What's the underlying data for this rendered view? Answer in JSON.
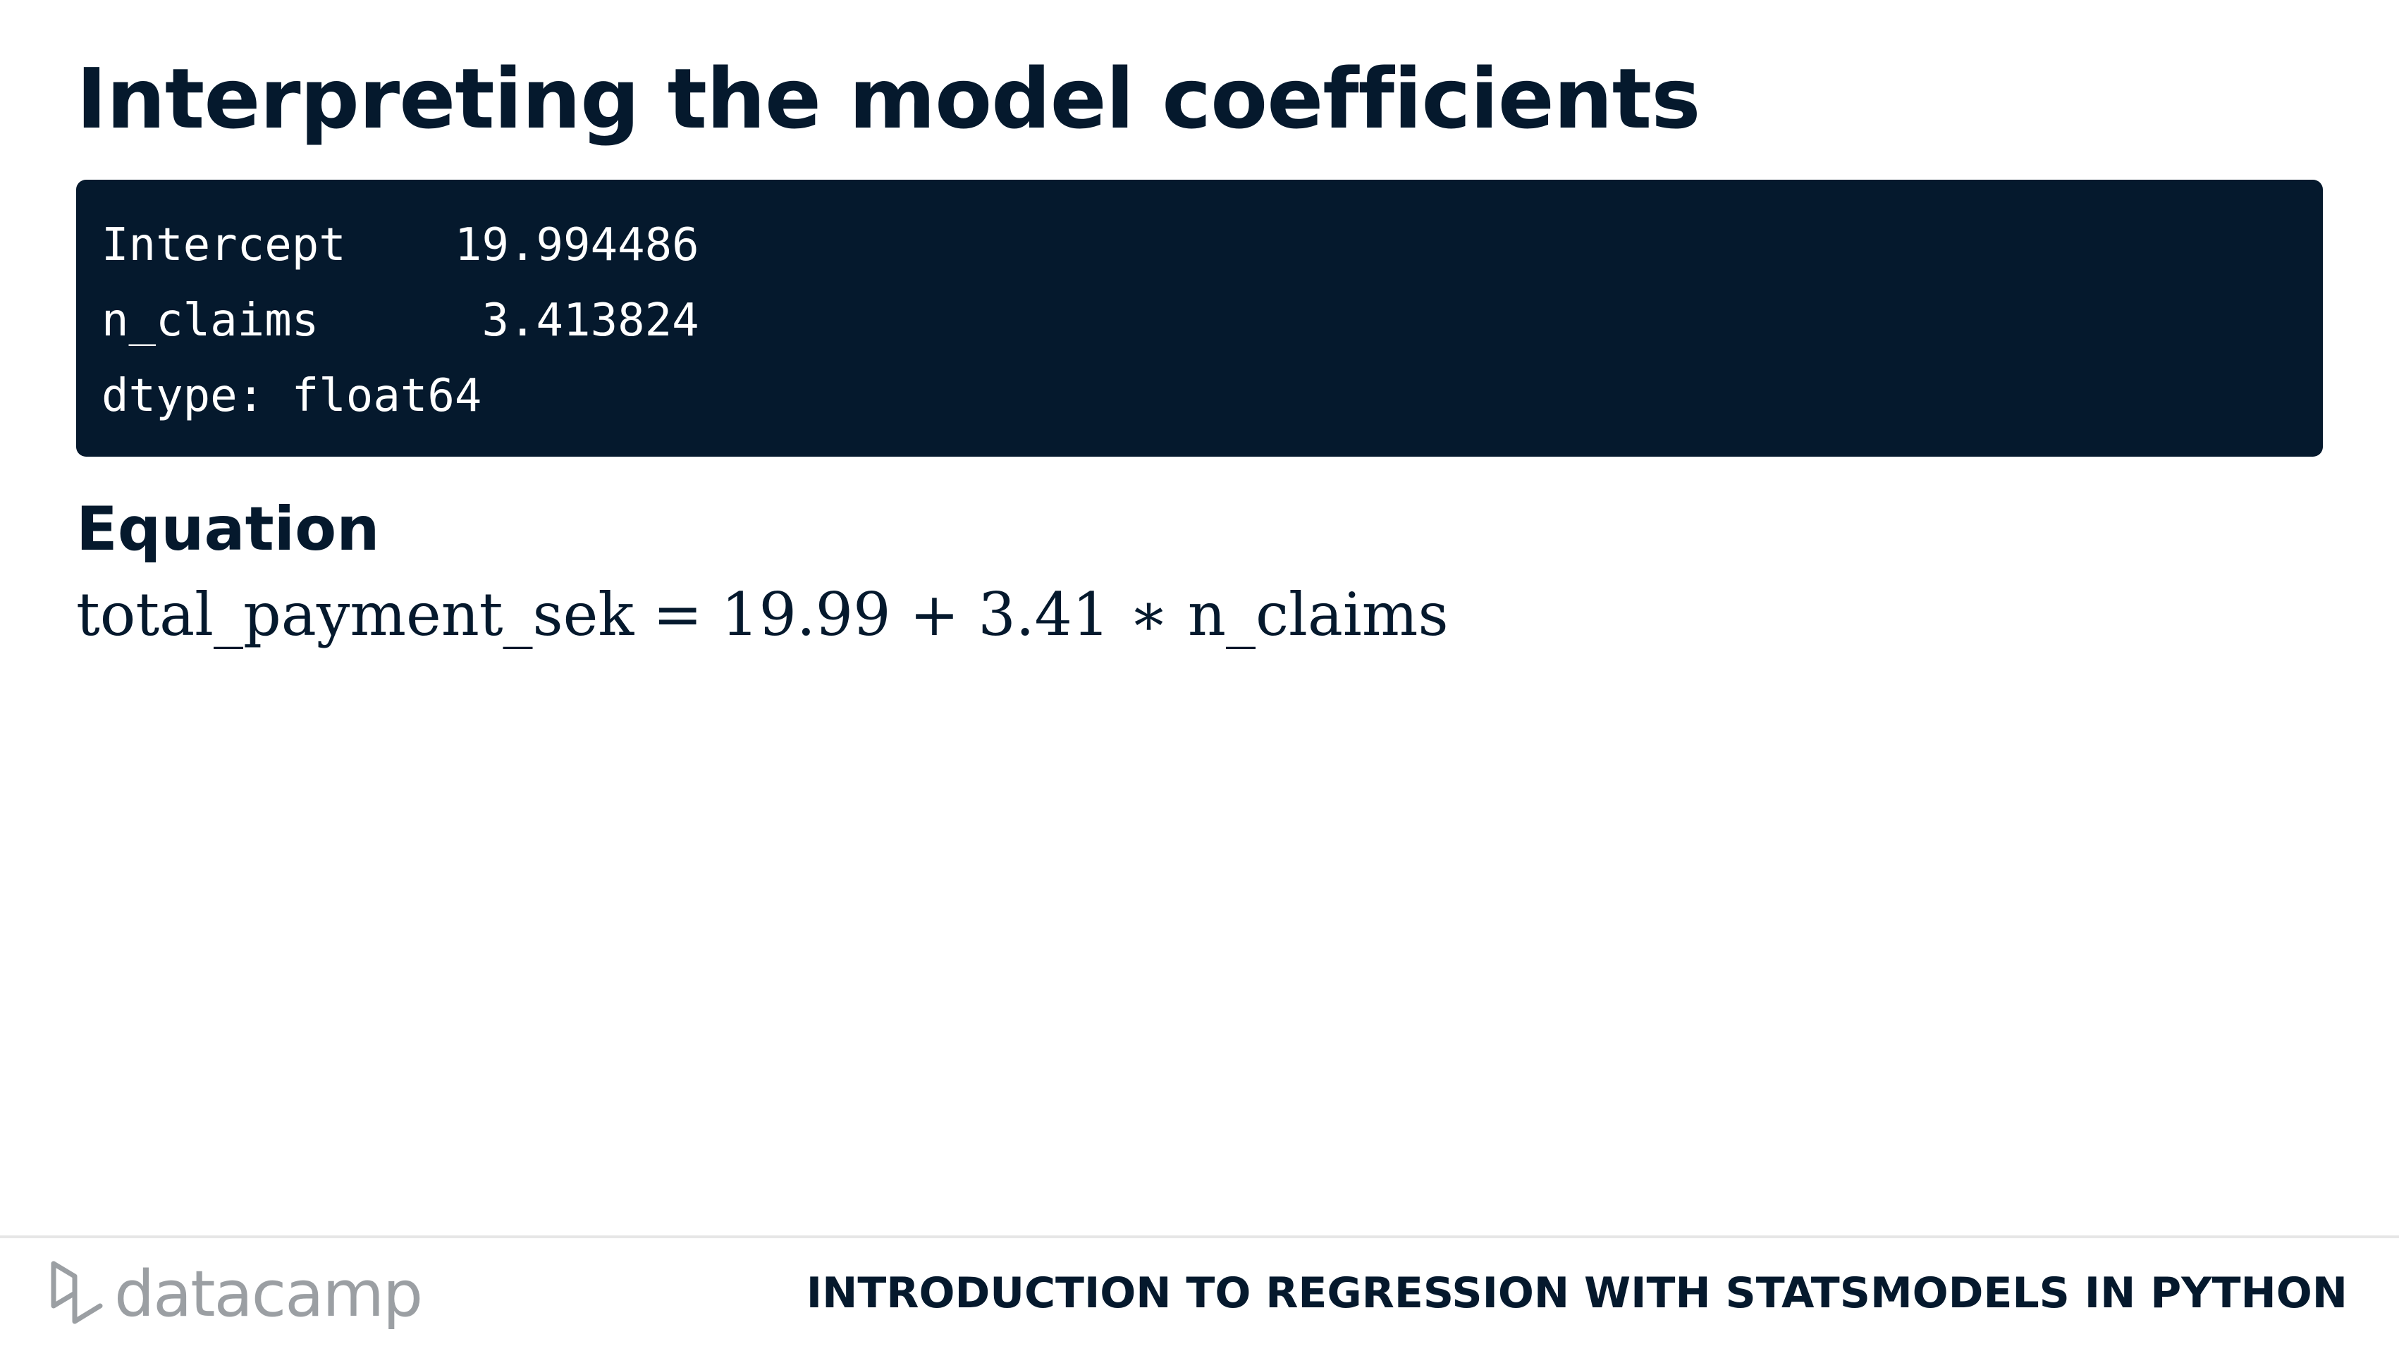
{
  "slide": {
    "title": "Interpreting the model coefficients"
  },
  "code_output": {
    "lines": [
      "Intercept    19.994486",
      "n_claims      3.413824",
      "dtype: float64"
    ]
  },
  "equation_section": {
    "heading": "Equation",
    "formula": "total_payment_sek = 19.99 + 3.41 ∗ n_claims"
  },
  "footer": {
    "logo_text": "datacamp",
    "course_title": "INTRODUCTION TO REGRESSION WITH STATSMODELS IN PYTHON"
  },
  "colors": {
    "navy": "#05192d",
    "logo_gray": "#9b9fa3",
    "background": "#ffffff"
  }
}
